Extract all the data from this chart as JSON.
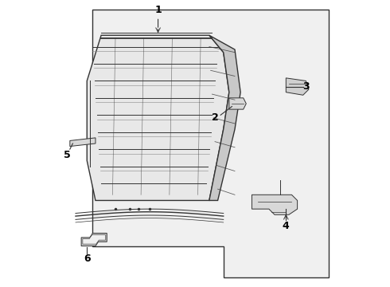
{
  "background_color": "#ffffff",
  "line_color": "#333333",
  "label_color": "#000000",
  "fig_width": 4.9,
  "fig_height": 3.6,
  "dpi": 100,
  "label_fontsize": 9
}
